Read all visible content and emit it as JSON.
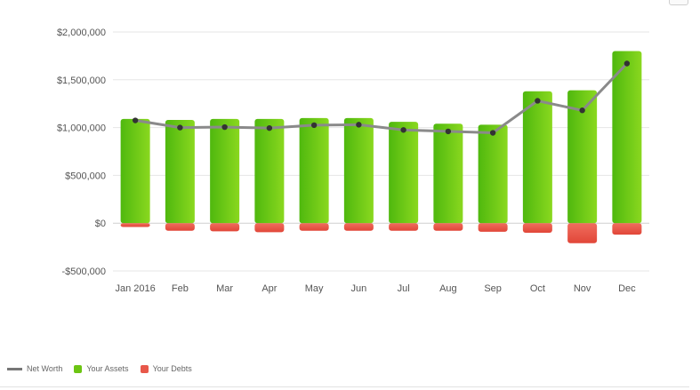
{
  "chart_data": {
    "type": "bar",
    "categories": [
      "Jan 2016",
      "Feb",
      "Mar",
      "Apr",
      "May",
      "Jun",
      "Jul",
      "Aug",
      "Sep",
      "Oct",
      "Nov",
      "Dec"
    ],
    "series": [
      {
        "name": "Your Assets",
        "type": "bar",
        "color": "#6cc513",
        "values": [
          1090000,
          1080000,
          1090000,
          1090000,
          1100000,
          1100000,
          1060000,
          1040000,
          1030000,
          1380000,
          1390000,
          1800000
        ]
      },
      {
        "name": "Your Debts",
        "type": "bar",
        "color": "#e8584a",
        "values": [
          -40000,
          -80000,
          -85000,
          -95000,
          -80000,
          -80000,
          -80000,
          -80000,
          -90000,
          -100000,
          -210000,
          -120000
        ]
      },
      {
        "name": "Net Worth",
        "type": "line",
        "color": "#8a8a8a",
        "values": [
          1075000,
          1000000,
          1005000,
          995000,
          1025000,
          1030000,
          975000,
          960000,
          945000,
          1280000,
          1180000,
          1670000
        ]
      }
    ],
    "ylim": [
      -500000,
      2000000
    ],
    "yticks": [
      2000000,
      1500000,
      1000000,
      500000,
      0,
      -500000
    ],
    "ytick_labels": [
      "$2,000,000",
      "$1,500,000",
      "$1,000,000",
      "$500,000",
      "$0",
      "-$500,000"
    ],
    "grid": true,
    "legend_placement": "bottom-left"
  },
  "legend": {
    "net_worth": "Net Worth",
    "assets": "Your Assets",
    "debts": "Your Debts",
    "net_worth_color": "#777777",
    "assets_color": "#6cc513",
    "debts_color": "#e8584a"
  }
}
